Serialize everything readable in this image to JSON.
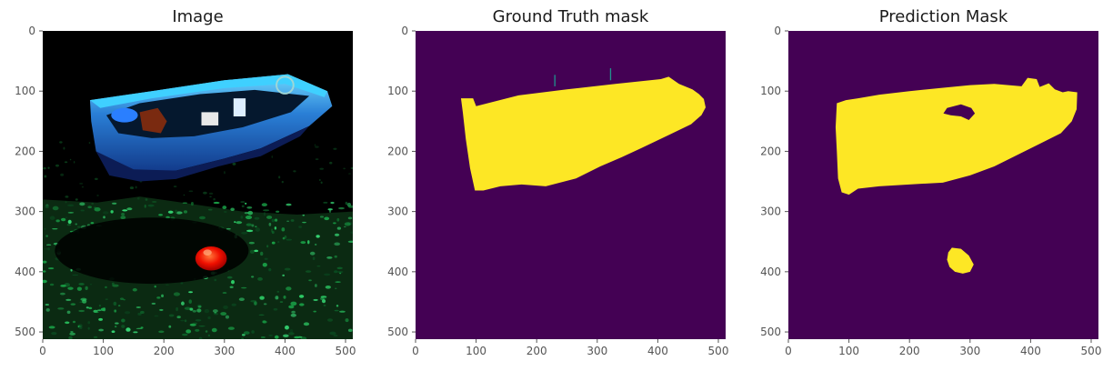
{
  "chart_data": [
    {
      "type": "image",
      "title": "Image",
      "xlim": [
        0,
        512
      ],
      "ylim": [
        512,
        0
      ],
      "xticks": [
        "0",
        "100",
        "200",
        "300",
        "400",
        "500"
      ],
      "yticks": [
        "0",
        "100",
        "200",
        "300",
        "400",
        "500"
      ],
      "grid": false
    },
    {
      "type": "heatmap",
      "title": "Ground Truth mask",
      "xlim": [
        0,
        512
      ],
      "ylim": [
        512,
        0
      ],
      "xticks": [
        "0",
        "100",
        "200",
        "300",
        "400",
        "500"
      ],
      "yticks": [
        "0",
        "100",
        "200",
        "300",
        "400",
        "500"
      ],
      "grid": false,
      "colors": {
        "background": "#440154",
        "foreground": "#fde725"
      },
      "regions": [
        {
          "label": "boat",
          "polygon": [
            [
              75,
              112
            ],
            [
              95,
              112
            ],
            [
              100,
              125
            ],
            [
              170,
              107
            ],
            [
              250,
              97
            ],
            [
              330,
              88
            ],
            [
              405,
              80
            ],
            [
              418,
              76
            ],
            [
              435,
              88
            ],
            [
              457,
              97
            ],
            [
              468,
              105
            ],
            [
              476,
              113
            ],
            [
              479,
              127
            ],
            [
              472,
              140
            ],
            [
              455,
              155
            ],
            [
              420,
              172
            ],
            [
              372,
              195
            ],
            [
              340,
              210
            ],
            [
              305,
              225
            ],
            [
              265,
              245
            ],
            [
              215,
              258
            ],
            [
              175,
              255
            ],
            [
              140,
              258
            ],
            [
              112,
              265
            ],
            [
              98,
              265
            ],
            [
              90,
              228
            ],
            [
              83,
              180
            ],
            [
              78,
              135
            ]
          ]
        }
      ]
    },
    {
      "type": "heatmap",
      "title": "Prediction Mask",
      "xlim": [
        0,
        512
      ],
      "ylim": [
        512,
        0
      ],
      "xticks": [
        "0",
        "100",
        "200",
        "300",
        "400",
        "500"
      ],
      "yticks": [
        "0",
        "100",
        "200",
        "300",
        "400",
        "500"
      ],
      "grid": false,
      "colors": {
        "background": "#440154",
        "foreground": "#fde725"
      },
      "regions": [
        {
          "label": "boat",
          "polygon": [
            [
              80,
              120
            ],
            [
              95,
              115
            ],
            [
              115,
              112
            ],
            [
              150,
              106
            ],
            [
              200,
              100
            ],
            [
              250,
              95
            ],
            [
              300,
              90
            ],
            [
              340,
              88
            ],
            [
              385,
              92
            ],
            [
              395,
              78
            ],
            [
              410,
              80
            ],
            [
              415,
              93
            ],
            [
              430,
              87
            ],
            [
              440,
              97
            ],
            [
              453,
              102
            ],
            [
              462,
              100
            ],
            [
              477,
              102
            ],
            [
              476,
              130
            ],
            [
              468,
              150
            ],
            [
              450,
              170
            ],
            [
              420,
              185
            ],
            [
              380,
              205
            ],
            [
              340,
              225
            ],
            [
              300,
              240
            ],
            [
              255,
              252
            ],
            [
              200,
              255
            ],
            [
              150,
              258
            ],
            [
              115,
              262
            ],
            [
              100,
              272
            ],
            [
              88,
              268
            ],
            [
              82,
              245
            ],
            [
              80,
              200
            ],
            [
              78,
              160
            ]
          ]
        },
        {
          "label": "buoy",
          "polygon": [
            [
              270,
              360
            ],
            [
              285,
              362
            ],
            [
              298,
              373
            ],
            [
              306,
              388
            ],
            [
              300,
              400
            ],
            [
              288,
              403
            ],
            [
              275,
              400
            ],
            [
              266,
              392
            ],
            [
              262,
              380
            ],
            [
              264,
              368
            ]
          ]
        }
      ],
      "holes": [
        {
          "polygon": [
            [
              262,
              128
            ],
            [
              285,
              122
            ],
            [
              302,
              128
            ],
            [
              308,
              137
            ],
            [
              298,
              148
            ],
            [
              285,
              142
            ],
            [
              268,
              140
            ],
            [
              256,
              137
            ]
          ]
        }
      ]
    }
  ]
}
